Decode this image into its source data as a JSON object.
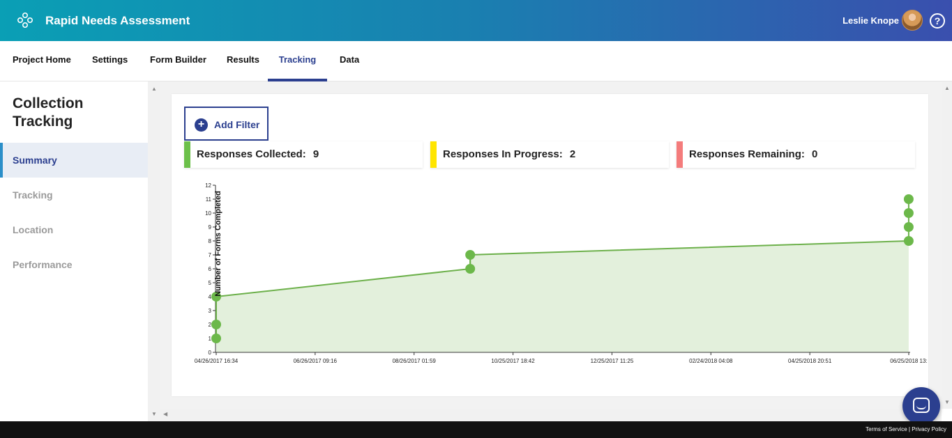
{
  "header": {
    "app_title": "Rapid Needs Assessment",
    "user_name": "Leslie Knope",
    "help_symbol": "?"
  },
  "nav": {
    "tabs": [
      {
        "label": "Project Home"
      },
      {
        "label": "Settings"
      },
      {
        "label": "Form Builder"
      },
      {
        "label": "Results"
      },
      {
        "label": "Tracking",
        "active": true
      },
      {
        "label": "Data"
      }
    ]
  },
  "sidebar": {
    "title": "Collection Tracking",
    "items": [
      {
        "label": "Summary",
        "active": true
      },
      {
        "label": "Tracking"
      },
      {
        "label": "Location"
      },
      {
        "label": "Performance"
      }
    ]
  },
  "filter": {
    "add_label": "Add Filter"
  },
  "stats": [
    {
      "label": "Responses Collected:",
      "value": "9",
      "color": "#6cc04a"
    },
    {
      "label": "Responses In Progress:",
      "value": "2",
      "color": "#ffe500"
    },
    {
      "label": "Responses Remaining:",
      "value": "0",
      "color": "#f47c7c"
    }
  ],
  "chart_data": {
    "type": "area",
    "ylabel": "Number of Forms Completed",
    "ylim": [
      0,
      12
    ],
    "yticks": [
      0,
      1,
      2,
      3,
      4,
      5,
      6,
      7,
      8,
      9,
      10,
      11,
      12
    ],
    "xticks": [
      "04/26/2017 16:34",
      "06/26/2017 09:16",
      "08/26/2017 01:59",
      "10/25/2017 18:42",
      "12/25/2017 11:25",
      "02/24/2018 04:08",
      "04/25/2018 20:51",
      "06/25/2018 13:"
    ],
    "area_line": [
      {
        "x": "04/26/2017 16:34",
        "y": 4
      },
      {
        "x": "09/29/2017",
        "y": 6
      },
      {
        "x": "09/29/2017",
        "y": 7
      },
      {
        "x": "06/25/2018",
        "y": 8
      }
    ],
    "points": [
      {
        "x": "04/26/2017 16:34",
        "y": 1
      },
      {
        "x": "04/26/2017 16:34",
        "y": 2
      },
      {
        "x": "04/26/2017 16:34",
        "y": 4
      },
      {
        "x": "09/29/2017",
        "y": 6
      },
      {
        "x": "09/29/2017",
        "y": 7
      },
      {
        "x": "06/25/2018",
        "y": 8
      },
      {
        "x": "06/25/2018",
        "y": 9
      },
      {
        "x": "06/25/2018",
        "y": 10
      },
      {
        "x": "06/25/2018",
        "y": 11
      }
    ],
    "colors": {
      "fill": "#e3f0dc",
      "line": "#6cb04a",
      "point": "#6cb84a"
    }
  },
  "footer": {
    "terms": "Terms of Service",
    "privacy": "Privacy Policy"
  }
}
